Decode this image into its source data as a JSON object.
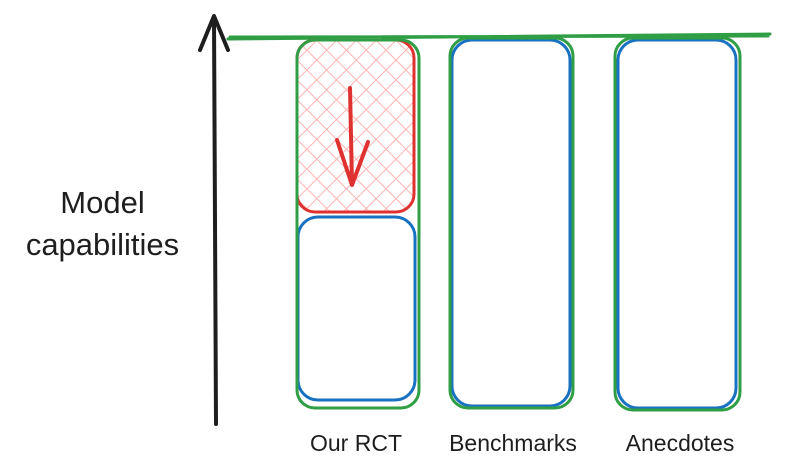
{
  "y_axis_label": [
    "Model",
    "capabilities"
  ],
  "columns": [
    {
      "label": "Our RCT"
    },
    {
      "label": "Benchmarks"
    },
    {
      "label": "Anecdotes"
    }
  ],
  "colors": {
    "axis": "#1e1e1e",
    "green": "#2f9e44",
    "blue": "#1971c2",
    "red": "#e03131",
    "red_hatch": "#ffc9c9"
  }
}
